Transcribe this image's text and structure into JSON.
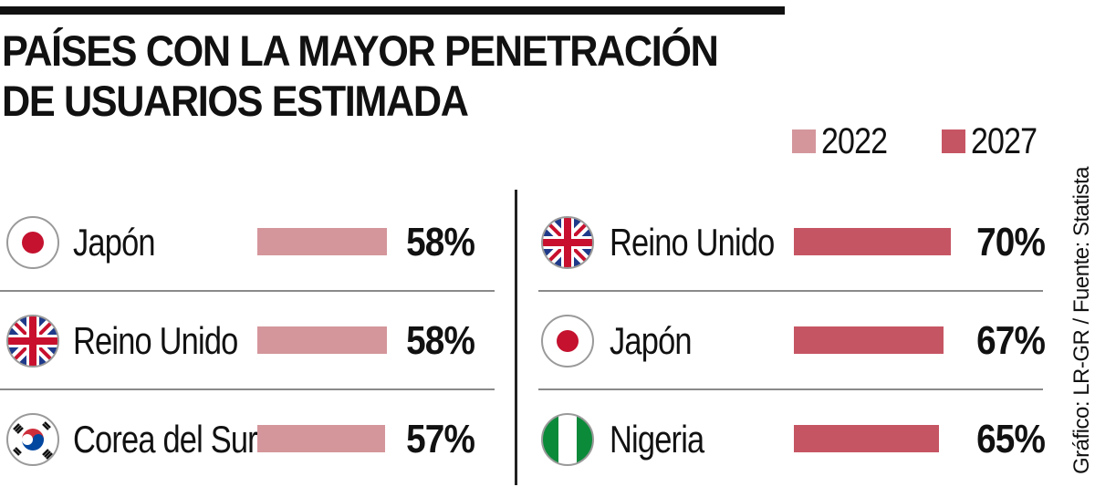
{
  "title": "PAÍSES CON LA MAYOR PENETRACIÓN DE USUARIOS ESTIMADA",
  "legend": [
    {
      "label": "2022",
      "color": "#d4969b"
    },
    {
      "label": "2027",
      "color": "#c65563"
    }
  ],
  "credit": "Gráfico: LR-GR / Fuente: Statista",
  "chart_data": [
    {
      "type": "bar",
      "orientation": "horizontal",
      "series_name": "2022",
      "color": "#d4969b",
      "categories": [
        "Japón",
        "Reino Unido",
        "Corea del Sur"
      ],
      "values": [
        58,
        58,
        57
      ],
      "labels": [
        "58%",
        "58%",
        "57%"
      ],
      "flags": [
        "japan-flag-icon",
        "uk-flag-icon",
        "south-korea-flag-icon"
      ],
      "unit": "%"
    },
    {
      "type": "bar",
      "orientation": "horizontal",
      "series_name": "2027",
      "color": "#c65563",
      "categories": [
        "Reino Unido",
        "Japón",
        "Nigeria"
      ],
      "values": [
        70,
        67,
        65
      ],
      "labels": [
        "70%",
        "67%",
        "65%"
      ],
      "flags": [
        "uk-flag-icon",
        "japan-flag-icon",
        "nigeria-flag-icon"
      ],
      "unit": "%"
    }
  ]
}
